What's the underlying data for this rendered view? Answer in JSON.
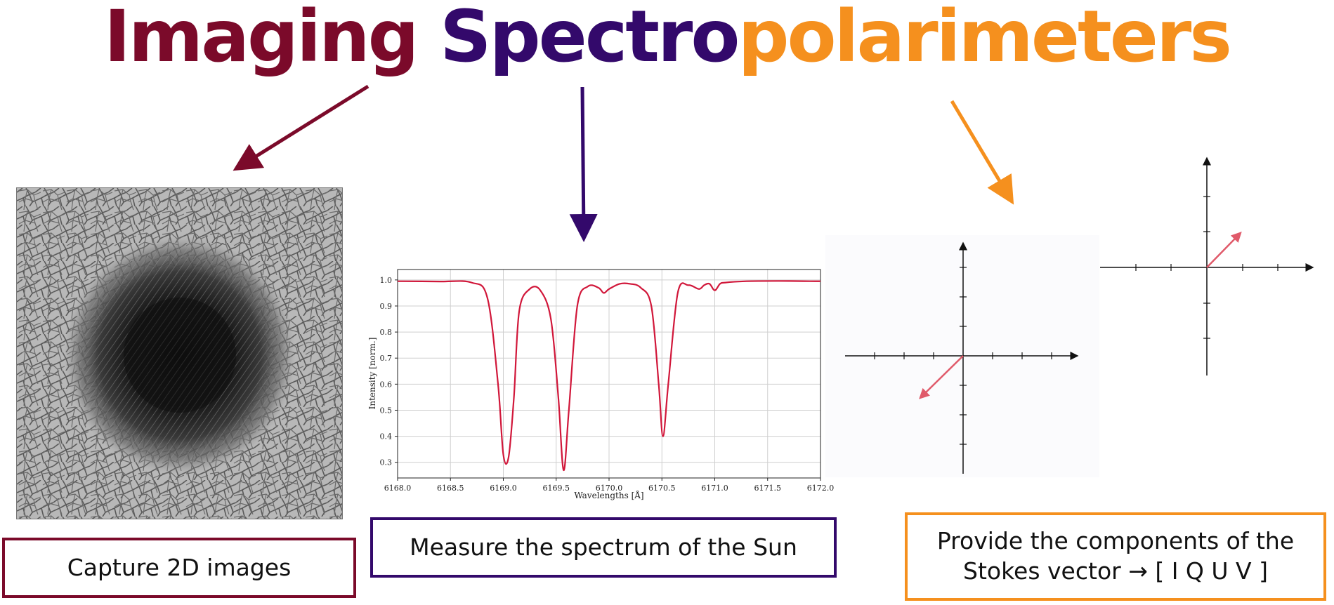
{
  "title": {
    "word1": "Imaging",
    "word2": "Spectro",
    "word3": "polarimeters",
    "color1": "#7b0a2a",
    "color2": "#33096b",
    "color3": "#f5901e"
  },
  "captions": {
    "images": "Capture 2D images",
    "spectrum": "Measure the spectrum of the Sun",
    "stokes_line1": "Provide the components of the",
    "stokes_line2": "Stokes vector →  [ I Q U V ]"
  },
  "chart_data": {
    "type": "line",
    "xlabel": "Wavelengths [Å]",
    "ylabel": "Intensity [norm.]",
    "xlim": [
      6168.0,
      6172.0
    ],
    "ylim": [
      0.24,
      1.04
    ],
    "xticks": [
      "6168.0",
      "6168.5",
      "6169.0",
      "6169.5",
      "6170.0",
      "6170.5",
      "6171.0",
      "6171.5",
      "6172.0"
    ],
    "yticks": [
      "0.3",
      "0.4",
      "0.5",
      "0.6",
      "0.7",
      "0.8",
      "0.9",
      "1.0"
    ],
    "grid": true,
    "line_color": "#d1173a",
    "x": [
      6168.0,
      6168.4,
      6168.7,
      6168.85,
      6168.95,
      6169.0,
      6169.05,
      6169.1,
      6169.15,
      6169.25,
      6169.35,
      6169.45,
      6169.52,
      6169.57,
      6169.62,
      6169.7,
      6169.8,
      6169.9,
      6169.95,
      6170.0,
      6170.1,
      6170.2,
      6170.3,
      6170.4,
      6170.47,
      6170.51,
      6170.56,
      6170.65,
      6170.75,
      6170.85,
      6170.9,
      6170.95,
      6171.0,
      6171.05,
      6171.1,
      6171.3,
      6171.6,
      6171.9,
      6172.0
    ],
    "y": [
      0.995,
      0.994,
      0.99,
      0.93,
      0.6,
      0.33,
      0.32,
      0.55,
      0.88,
      0.965,
      0.96,
      0.85,
      0.55,
      0.27,
      0.5,
      0.9,
      0.975,
      0.97,
      0.95,
      0.965,
      0.985,
      0.985,
      0.97,
      0.9,
      0.6,
      0.4,
      0.6,
      0.95,
      0.98,
      0.965,
      0.98,
      0.985,
      0.96,
      0.985,
      0.99,
      0.995,
      0.996,
      0.995,
      0.995
    ]
  }
}
